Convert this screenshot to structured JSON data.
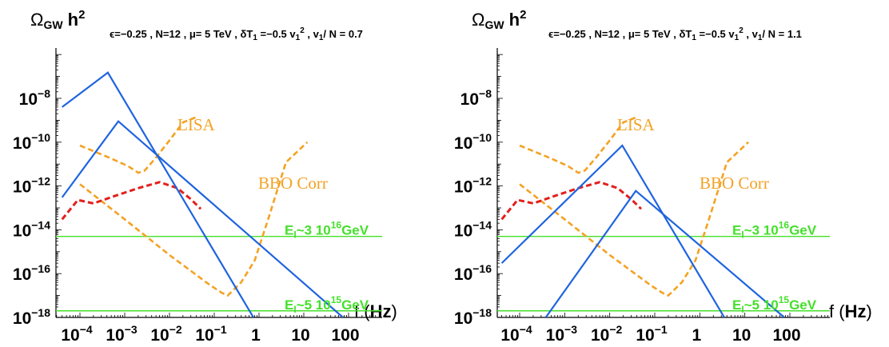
{
  "colors": {
    "signal": "#1f64e0",
    "detector": "#f4a224",
    "foreground": "#e2201c",
    "inflation": "#44e02a",
    "axis": "#000000"
  },
  "chart_data": [
    {
      "type": "line",
      "ylabel": {
        "base": "Ω",
        "sub": "GW",
        "rest": " h",
        "sup": "2"
      },
      "params": {
        "pre": "ϵ=−0.25  , N=12 ,  μ= 5 TeV , δT",
        "sub": "1",
        "mid": " =−0.5  v",
        "sub2": "1",
        "sup": "2",
        "post": "  , v",
        "sub3": "1",
        "post2": "/ N = 0.7"
      },
      "xlabel": {
        "pre": "f (",
        "bold": "Hz",
        "post": ")"
      },
      "x_scale": "log",
      "y_scale": "log",
      "xlim": [
        4e-05,
        100
      ],
      "ylim": [
        1e-18,
        1e-06
      ],
      "x_ticks": [
        {
          "value": 0.0001,
          "base": "10",
          "exp": "−4"
        },
        {
          "value": 0.001,
          "base": "10",
          "exp": "−3"
        },
        {
          "value": 0.01,
          "base": "10",
          "exp": "−2"
        },
        {
          "value": 0.1,
          "base": "10",
          "exp": "−1"
        },
        {
          "value": 1,
          "base": "1",
          "exp": ""
        },
        {
          "value": 10,
          "base": "10",
          "exp": ""
        },
        {
          "value": 100,
          "base": "100",
          "exp": ""
        }
      ],
      "y_ticks": [
        {
          "value": 1e-08,
          "base": "10",
          "exp": "−8"
        },
        {
          "value": 1e-10,
          "base": "10",
          "exp": "−10"
        },
        {
          "value": 1e-12,
          "base": "10",
          "exp": "−12"
        },
        {
          "value": 1e-14,
          "base": "10",
          "exp": "−14"
        },
        {
          "value": 1e-16,
          "base": "10",
          "exp": "−16"
        },
        {
          "value": 1e-18,
          "base": "10",
          "exp": "−18"
        }
      ],
      "signals": [
        {
          "points": [
            [
              4e-05,
              4e-09
            ],
            [
              0.00042,
              1.5e-07
            ],
            [
              0.75,
              1e-18
            ]
          ]
        },
        {
          "points": [
            [
              4e-05,
              3e-13
            ],
            [
              0.00072,
              9e-10
            ],
            [
              75,
              1e-18
            ]
          ]
        }
      ],
      "detectors": [
        {
          "name": "LISA",
          "points": [
            [
              0.0001,
              7e-11
            ],
            [
              0.0005,
              1.8e-11
            ],
            [
              0.0012,
              8e-12
            ],
            [
              0.002,
              4e-12
            ],
            [
              0.0028,
              5e-12
            ],
            [
              0.005,
              2e-11
            ],
            [
              0.01,
              1.2e-10
            ],
            [
              0.02,
              8e-10
            ],
            [
              0.04,
              1.4e-09
            ]
          ]
        },
        {
          "name": "BBO Corr",
          "points": [
            [
              0.0001,
              1.2e-12
            ],
            [
              0.001,
              3e-14
            ],
            [
              0.01,
              7e-16
            ],
            [
              0.08,
              3e-17
            ],
            [
              0.15,
              1.3e-17
            ],
            [
              0.2,
              1e-17
            ],
            [
              0.4,
              4e-17
            ],
            [
              0.8,
              4e-16
            ],
            [
              1.6,
              3e-14
            ],
            [
              4,
              1.2e-11
            ],
            [
              12,
              1e-10
            ]
          ]
        }
      ],
      "foreground": {
        "points": [
          [
            4e-05,
            3e-14
          ],
          [
            9e-05,
            2.3e-13
          ],
          [
            0.0002,
            1.6e-13
          ],
          [
            0.0006,
            3.5e-13
          ],
          [
            0.002,
            8e-13
          ],
          [
            0.006,
            1.5e-12
          ],
          [
            0.015,
            8e-13
          ],
          [
            0.03,
            2.5e-13
          ],
          [
            0.05,
            9e-14
          ]
        ]
      },
      "inflation": [
        {
          "y": 5e-15,
          "label": {
            "e": "E",
            "sub": "I",
            "tilde": "~3 10",
            "sup": "16",
            "unit": "GeV"
          }
        },
        {
          "y": 2e-18,
          "label": {
            "e": "E",
            "sub": "I",
            "tilde": "~5 10",
            "sup": "15",
            "unit": "GeV"
          }
        }
      ]
    },
    {
      "type": "line",
      "ylabel": {
        "base": "Ω",
        "sub": "GW",
        "rest": " h",
        "sup": "2"
      },
      "params": {
        "pre": "ϵ=−0.25  , N=12 ,  μ= 5 TeV , δT",
        "sub": "1",
        "mid": " =−0.5  v",
        "sub2": "1",
        "sup": "2",
        "post": "  , v",
        "sub3": "1",
        "post2": "/ N = 1.1"
      },
      "xlabel": {
        "pre": "f (",
        "bold": "Hz",
        "post": ")"
      },
      "x_scale": "log",
      "y_scale": "log",
      "xlim": [
        4e-05,
        100
      ],
      "ylim": [
        1e-18,
        1e-06
      ],
      "x_ticks": [
        {
          "value": 0.0001,
          "base": "10",
          "exp": "−4"
        },
        {
          "value": 0.001,
          "base": "10",
          "exp": "−3"
        },
        {
          "value": 0.01,
          "base": "10",
          "exp": "−2"
        },
        {
          "value": 0.1,
          "base": "10",
          "exp": "−1"
        },
        {
          "value": 1,
          "base": "1",
          "exp": ""
        },
        {
          "value": 10,
          "base": "10",
          "exp": ""
        },
        {
          "value": 100,
          "base": "100",
          "exp": ""
        }
      ],
      "y_ticks": [
        {
          "value": 1e-08,
          "base": "10",
          "exp": "−8"
        },
        {
          "value": 1e-10,
          "base": "10",
          "exp": "−10"
        },
        {
          "value": 1e-12,
          "base": "10",
          "exp": "−12"
        },
        {
          "value": 1e-14,
          "base": "10",
          "exp": "−14"
        },
        {
          "value": 1e-16,
          "base": "10",
          "exp": "−16"
        },
        {
          "value": 1e-18,
          "base": "10",
          "exp": "−18"
        }
      ],
      "signals": [
        {
          "points": [
            [
              4e-05,
              3e-16
            ],
            [
              0.019,
              7e-11
            ],
            [
              3.5,
              1e-18
            ]
          ]
        },
        {
          "points": [
            [
              0.00038,
              1e-18
            ],
            [
              0.038,
              6e-13
            ],
            [
              75,
              1e-18
            ]
          ]
        }
      ],
      "detectors": [
        {
          "name": "LISA",
          "points": [
            [
              0.0001,
              7e-11
            ],
            [
              0.0005,
              1.8e-11
            ],
            [
              0.0012,
              8e-12
            ],
            [
              0.002,
              4e-12
            ],
            [
              0.0028,
              5e-12
            ],
            [
              0.005,
              2e-11
            ],
            [
              0.01,
              1.2e-10
            ],
            [
              0.02,
              8e-10
            ],
            [
              0.04,
              1.4e-09
            ]
          ]
        },
        {
          "name": "BBO Corr",
          "points": [
            [
              0.0001,
              1.2e-12
            ],
            [
              0.001,
              3e-14
            ],
            [
              0.01,
              7e-16
            ],
            [
              0.08,
              3e-17
            ],
            [
              0.15,
              1.3e-17
            ],
            [
              0.2,
              1e-17
            ],
            [
              0.4,
              4e-17
            ],
            [
              0.8,
              4e-16
            ],
            [
              1.6,
              3e-14
            ],
            [
              4,
              1.2e-11
            ],
            [
              12,
              1e-10
            ]
          ]
        }
      ],
      "foreground": {
        "points": [
          [
            4e-05,
            3e-14
          ],
          [
            9e-05,
            2.3e-13
          ],
          [
            0.0002,
            1.6e-13
          ],
          [
            0.0006,
            3.5e-13
          ],
          [
            0.002,
            8e-13
          ],
          [
            0.006,
            1.5e-12
          ],
          [
            0.015,
            8e-13
          ],
          [
            0.03,
            2.5e-13
          ],
          [
            0.05,
            9e-14
          ]
        ]
      },
      "inflation": [
        {
          "y": 5e-15,
          "label": {
            "e": "E",
            "sub": "I",
            "tilde": "~3 10",
            "sup": "16",
            "unit": "GeV"
          }
        },
        {
          "y": 2e-18,
          "label": {
            "e": "E",
            "sub": "I",
            "tilde": "~5 10",
            "sup": "15",
            "unit": "GeV"
          }
        }
      ]
    }
  ]
}
